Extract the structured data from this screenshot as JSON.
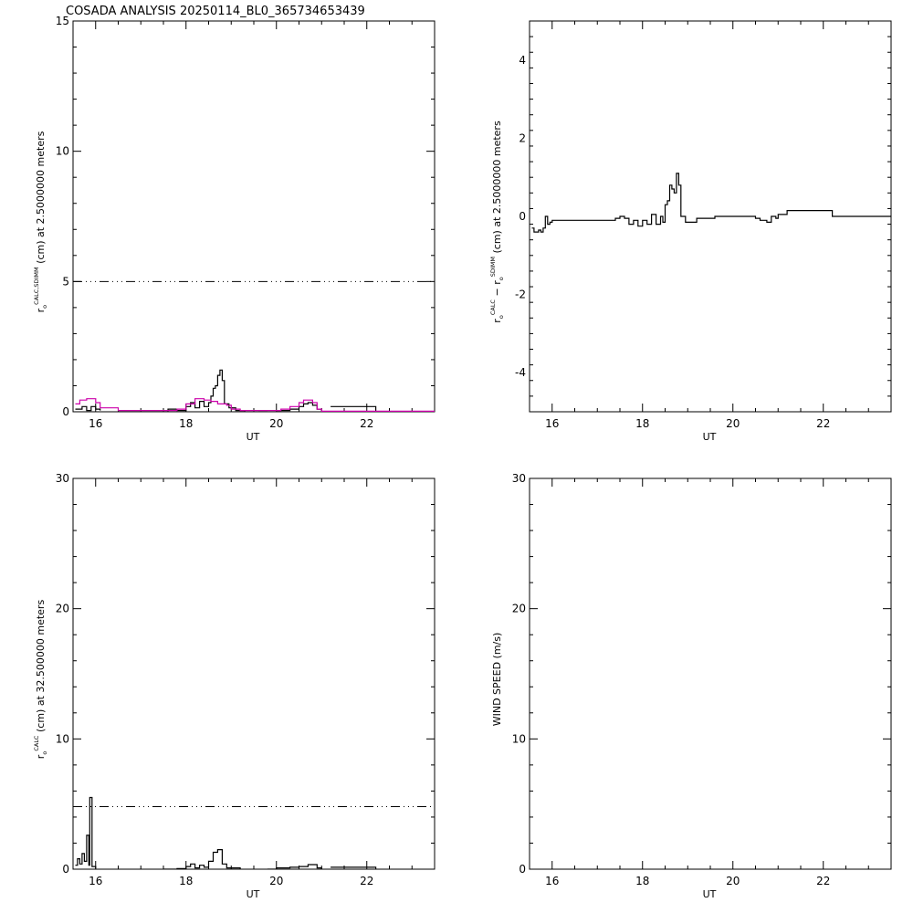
{
  "title": "COSADA ANALYSIS 20250114_BL0_365734653439",
  "colors": {
    "axes": "#000000",
    "primary": "#000000",
    "secondary": "#cc00aa"
  },
  "chart_data": [
    {
      "type": "line",
      "xlabel": "UT",
      "ylabel": {
        "prefix": "r",
        "sub": "o",
        "sup": "CALC,SDIMM",
        "rest": "(cm)  at  2.5000000 meters"
      },
      "xlim": [
        15.5,
        23.5
      ],
      "ylim": [
        0,
        15
      ],
      "xticks": [
        "16",
        "18",
        "20",
        "22"
      ],
      "yticks": [
        "0",
        "5",
        "10",
        "15"
      ],
      "reference": {
        "y": 5,
        "style": "dash-dot"
      },
      "series": [
        {
          "color": "#000000",
          "step": true,
          "segments": [
            [
              [
                15.55,
                0.1
              ],
              [
                15.7,
                0.2
              ],
              [
                15.8,
                0.05
              ],
              [
                15.9,
                0.2
              ],
              [
                16.0,
                0.1
              ],
              [
                16.1,
                0.05
              ]
            ],
            [
              [
                16.5,
                0.0
              ],
              [
                17.5,
                0.0
              ],
              [
                17.6,
                0.1
              ],
              [
                17.8,
                0.05
              ],
              [
                18.0,
                0.2
              ],
              [
                18.1,
                0.35
              ],
              [
                18.2,
                0.15
              ],
              [
                18.3,
                0.4
              ],
              [
                18.4,
                0.2
              ],
              [
                18.5,
                0.35
              ],
              [
                18.55,
                0.6
              ],
              [
                18.6,
                0.9
              ],
              [
                18.65,
                1.0
              ],
              [
                18.7,
                1.4
              ],
              [
                18.75,
                1.6
              ],
              [
                18.8,
                1.2
              ],
              [
                18.85,
                0.3
              ],
              [
                18.95,
                0.15
              ],
              [
                19.1,
                0.05
              ],
              [
                19.3,
                0.0
              ]
            ],
            [
              [
                19.6,
                0.0
              ],
              [
                19.8,
                0.0
              ]
            ],
            [
              [
                20.0,
                0.05
              ],
              [
                20.3,
                0.1
              ],
              [
                20.5,
                0.2
              ],
              [
                20.6,
                0.3
              ],
              [
                20.7,
                0.35
              ],
              [
                20.8,
                0.25
              ],
              [
                20.9,
                0.1
              ],
              [
                21.0,
                0.0
              ]
            ],
            [
              [
                21.2,
                0.2
              ],
              [
                22.2,
                0.2
              ],
              [
                22.2,
                0.0
              ]
            ]
          ]
        },
        {
          "color": "#cc00aa",
          "step": true,
          "segments": [
            [
              [
                15.55,
                0.3
              ],
              [
                15.65,
                0.45
              ],
              [
                15.8,
                0.5
              ],
              [
                16.0,
                0.35
              ],
              [
                16.1,
                0.15
              ],
              [
                16.5,
                0.05
              ],
              [
                17.5,
                0.05
              ],
              [
                17.8,
                0.1
              ],
              [
                18.0,
                0.3
              ],
              [
                18.2,
                0.5
              ],
              [
                18.4,
                0.45
              ],
              [
                18.55,
                0.4
              ],
              [
                18.7,
                0.3
              ],
              [
                18.9,
                0.25
              ],
              [
                19.0,
                0.1
              ],
              [
                19.2,
                0.05
              ],
              [
                19.6,
                0.05
              ],
              [
                20.1,
                0.1
              ],
              [
                20.3,
                0.2
              ],
              [
                20.5,
                0.35
              ],
              [
                20.6,
                0.45
              ],
              [
                20.8,
                0.35
              ],
              [
                20.9,
                0.1
              ],
              [
                21.0,
                0.02
              ],
              [
                22.2,
                0.02
              ],
              [
                23.5,
                0.02
              ]
            ]
          ]
        }
      ]
    },
    {
      "type": "line",
      "xlabel": "UT",
      "ylabel": {
        "t1": "r",
        "s1": "o",
        "p1": "CALC",
        "dash": "−",
        "t2": "r",
        "s2": "o",
        "p2": "SDIMM",
        "rest": "(cm)  at  2.5000000 meters"
      },
      "xlim": [
        15.5,
        23.5
      ],
      "ylim": [
        -5,
        5
      ],
      "xticks": [
        "16",
        "18",
        "20",
        "22"
      ],
      "yticks": [
        "-4",
        "-2",
        "0",
        "2",
        "4"
      ],
      "series": [
        {
          "color": "#000000",
          "step": true,
          "segments": [
            [
              [
                15.55,
                -0.3
              ],
              [
                15.6,
                -0.4
              ],
              [
                15.7,
                -0.35
              ],
              [
                15.75,
                -0.4
              ],
              [
                15.8,
                -0.3
              ],
              [
                15.85,
                0.0
              ],
              [
                15.9,
                -0.2
              ],
              [
                15.95,
                -0.15
              ],
              [
                16.0,
                -0.1
              ],
              [
                16.5,
                -0.1
              ],
              [
                17.4,
                -0.05
              ],
              [
                17.5,
                0.0
              ],
              [
                17.6,
                -0.05
              ],
              [
                17.7,
                -0.2
              ],
              [
                17.8,
                -0.1
              ],
              [
                17.9,
                -0.25
              ],
              [
                18.0,
                -0.1
              ],
              [
                18.1,
                -0.2
              ],
              [
                18.2,
                0.05
              ],
              [
                18.3,
                -0.2
              ],
              [
                18.4,
                0.0
              ],
              [
                18.45,
                -0.15
              ],
              [
                18.5,
                0.3
              ],
              [
                18.55,
                0.4
              ],
              [
                18.6,
                0.8
              ],
              [
                18.65,
                0.7
              ],
              [
                18.7,
                0.6
              ],
              [
                18.75,
                1.1
              ],
              [
                18.8,
                0.8
              ],
              [
                18.85,
                0.0
              ],
              [
                18.95,
                -0.15
              ],
              [
                19.2,
                -0.05
              ],
              [
                19.5,
                -0.05
              ],
              [
                19.6,
                0.0
              ],
              [
                20.0,
                0.0
              ],
              [
                20.5,
                -0.05
              ],
              [
                20.6,
                -0.1
              ],
              [
                20.75,
                -0.15
              ],
              [
                20.85,
                0.0
              ],
              [
                20.95,
                -0.05
              ],
              [
                21.0,
                0.05
              ],
              [
                21.2,
                0.15
              ],
              [
                22.2,
                0.0
              ],
              [
                23.5,
                0.0
              ]
            ]
          ]
        }
      ]
    },
    {
      "type": "line",
      "xlabel": "UT",
      "ylabel": {
        "prefix": "r",
        "sub": "o",
        "sup": "CALC",
        "rest": "(cm)  at  32.500000 meters"
      },
      "xlim": [
        15.5,
        23.5
      ],
      "ylim": [
        0,
        30
      ],
      "xticks": [
        "16",
        "18",
        "20",
        "22"
      ],
      "yticks": [
        "0",
        "10",
        "20",
        "30"
      ],
      "reference": {
        "y": 4.8,
        "style": "dash-dot"
      },
      "series": [
        {
          "color": "#000000",
          "step": true,
          "segments": [
            [
              [
                15.55,
                0.3
              ],
              [
                15.6,
                0.8
              ],
              [
                15.65,
                0.4
              ],
              [
                15.7,
                1.2
              ],
              [
                15.75,
                0.6
              ],
              [
                15.8,
                2.6
              ],
              [
                15.85,
                0.3
              ],
              [
                15.87,
                5.5
              ],
              [
                15.92,
                0.2
              ],
              [
                16.0,
                0.05
              ]
            ],
            [
              [
                17.5,
                0.0
              ],
              [
                17.8,
                0.05
              ],
              [
                18.0,
                0.2
              ],
              [
                18.1,
                0.4
              ],
              [
                18.2,
                0.1
              ],
              [
                18.3,
                0.3
              ],
              [
                18.4,
                0.15
              ],
              [
                18.5,
                0.6
              ],
              [
                18.6,
                1.3
              ],
              [
                18.7,
                1.5
              ],
              [
                18.8,
                0.4
              ],
              [
                18.9,
                0.1
              ],
              [
                19.2,
                0.0
              ]
            ],
            [
              [
                19.8,
                0.0
              ],
              [
                20.0,
                0.1
              ],
              [
                20.3,
                0.15
              ],
              [
                20.5,
                0.2
              ],
              [
                20.7,
                0.35
              ],
              [
                20.9,
                0.1
              ],
              [
                21.0,
                0.0
              ]
            ],
            [
              [
                21.2,
                0.15
              ],
              [
                22.2,
                0.15
              ],
              [
                22.2,
                0.0
              ]
            ]
          ]
        }
      ]
    },
    {
      "type": "line",
      "xlabel": "UT",
      "ylabel": {
        "text": "WIND SPEED (m/s)"
      },
      "xlim": [
        15.5,
        23.5
      ],
      "ylim": [
        0,
        30
      ],
      "xticks": [
        "16",
        "18",
        "20",
        "22"
      ],
      "yticks": [
        "0",
        "10",
        "20",
        "30"
      ],
      "series": []
    }
  ]
}
